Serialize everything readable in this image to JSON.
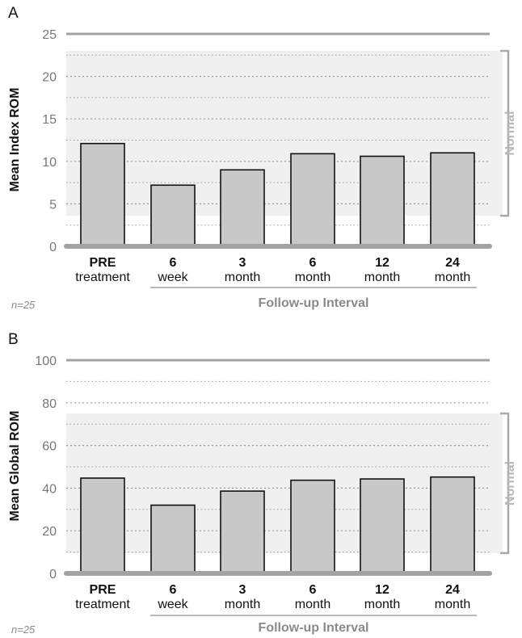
{
  "chart_data": [
    {
      "panel_label": "A",
      "type": "bar",
      "ylabel": "Mean Index ROM",
      "ylim": [
        0,
        25
      ],
      "yticks": [
        0,
        5,
        10,
        15,
        20,
        25
      ],
      "minor_gridlines": [
        2.5,
        7.5,
        12.5,
        17.5,
        22.5
      ],
      "categories": [
        {
          "top": "PRE",
          "bottom": "treatment"
        },
        {
          "top": "6",
          "bottom": "week"
        },
        {
          "top": "3",
          "bottom": "month"
        },
        {
          "top": "6",
          "bottom": "month"
        },
        {
          "top": "12",
          "bottom": "month"
        },
        {
          "top": "24",
          "bottom": "month"
        }
      ],
      "values": [
        12.1,
        7.2,
        9.0,
        10.9,
        10.6,
        11.0
      ],
      "normal_range": {
        "label": "Normal",
        "low": 3.6,
        "high": 23.0
      },
      "xlabel": "Follow-up Interval",
      "n_label": "n=25"
    },
    {
      "panel_label": "B",
      "type": "bar",
      "ylabel": "Mean Global ROM",
      "ylim": [
        0,
        100
      ],
      "yticks": [
        0,
        20,
        40,
        60,
        80,
        100
      ],
      "minor_gridlines": [
        10,
        30,
        50,
        70,
        90
      ],
      "categories": [
        {
          "top": "PRE",
          "bottom": "treatment"
        },
        {
          "top": "6",
          "bottom": "week"
        },
        {
          "top": "3",
          "bottom": "month"
        },
        {
          "top": "6",
          "bottom": "month"
        },
        {
          "top": "12",
          "bottom": "month"
        },
        {
          "top": "24",
          "bottom": "month"
        }
      ],
      "values": [
        44.7,
        32.0,
        38.6,
        43.7,
        44.3,
        45.2
      ],
      "normal_range": {
        "label": "Normal",
        "low": 9.5,
        "high": 75.0
      },
      "xlabel": "Follow-up Interval",
      "n_label": "n=25"
    }
  ],
  "colors": {
    "bar_fill": "#c8c8c8",
    "bar_stroke": "#111111",
    "normal_band": "#f0f0f0",
    "normal_bracket": "#a9a9a9",
    "normal_text": "#b8b8b8",
    "axis_line": "#a3a3a3",
    "grid_dotted": "#9a9a9a",
    "tick_text": "#777777",
    "xlabel_text": "#8a8a8a",
    "n_text": "#8a8a8a"
  }
}
